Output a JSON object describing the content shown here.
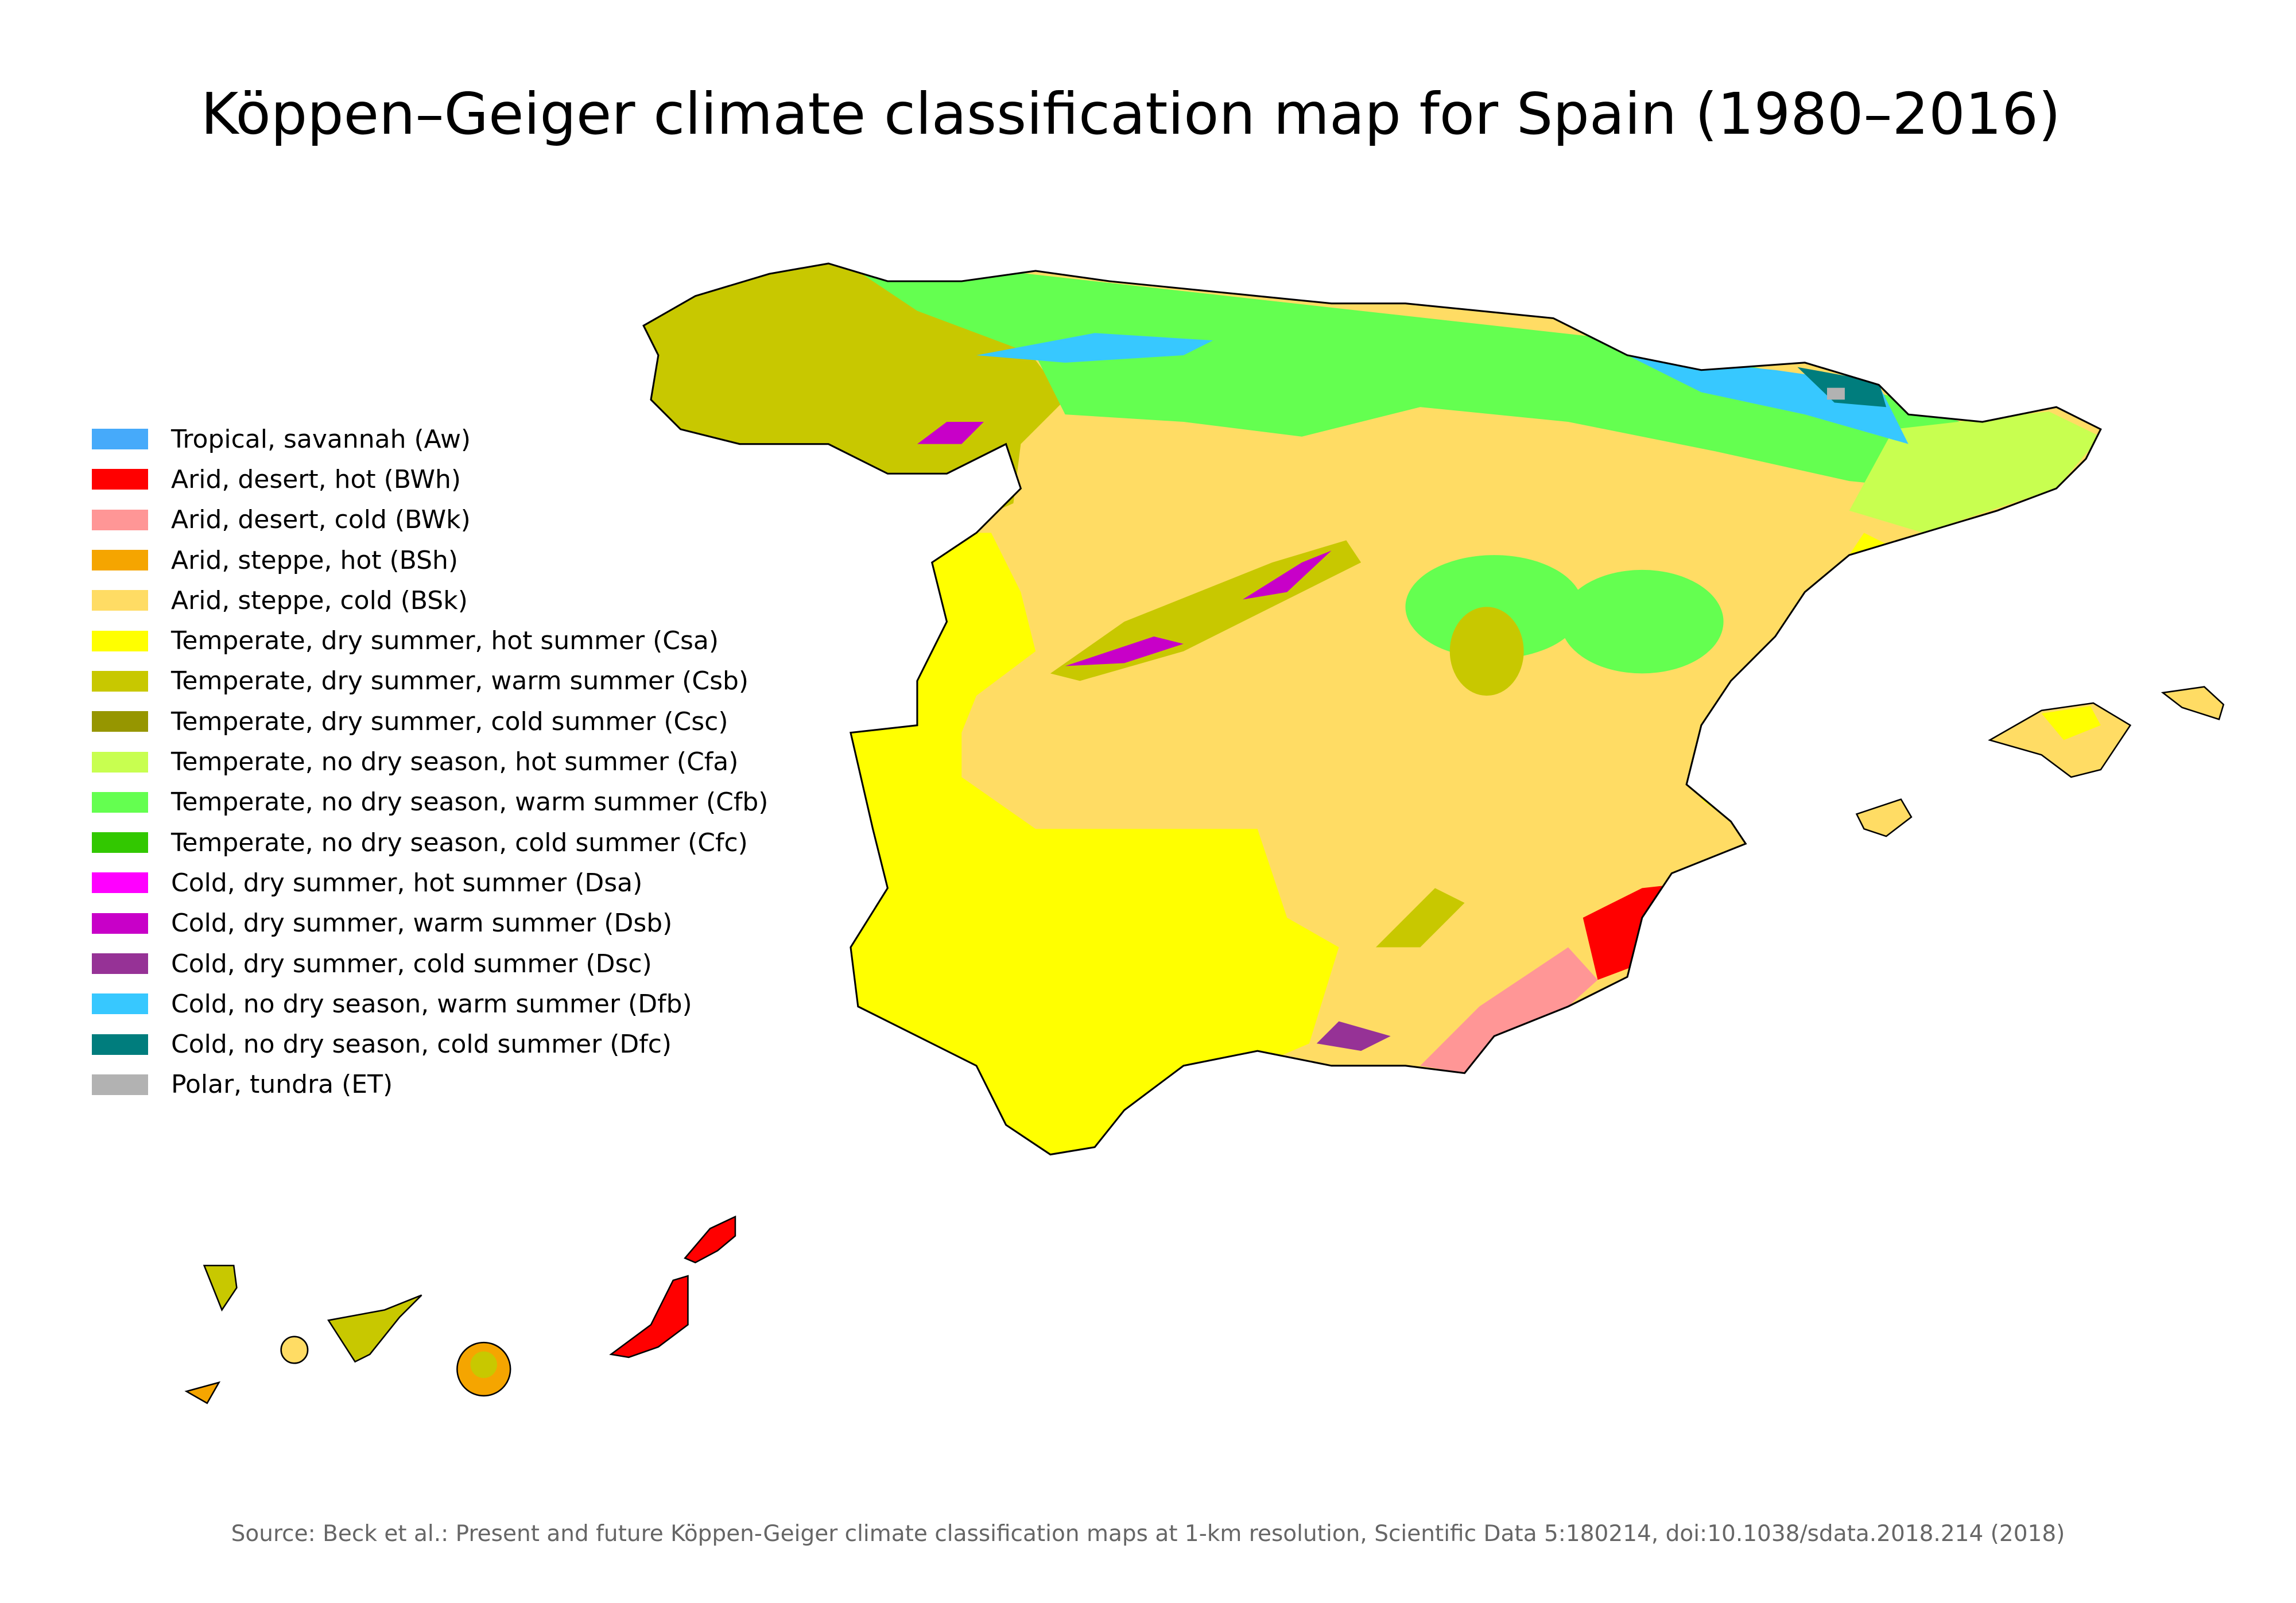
{
  "title": "Köppen–Geiger climate classification map for Spain (1980–2016)",
  "legend": [
    {
      "label": "Tropical, savannah (Aw)",
      "color": "#46AAFA"
    },
    {
      "label": "Arid, desert, hot (BWh)",
      "color": "#FF0000"
    },
    {
      "label": "Arid, desert, cold (BWk)",
      "color": "#FF9696"
    },
    {
      "label": "Arid, steppe, hot (BSh)",
      "color": "#F5A500"
    },
    {
      "label": "Arid, steppe, cold (BSk)",
      "color": "#FFDC64"
    },
    {
      "label": "Temperate, dry summer, hot summer (Csa)",
      "color": "#FFFF00"
    },
    {
      "label": "Temperate, dry summer, warm summer (Csb)",
      "color": "#C8C800"
    },
    {
      "label": "Temperate, dry summer, cold summer (Csc)",
      "color": "#969600"
    },
    {
      "label": "Temperate, no dry season, hot summer (Cfa)",
      "color": "#C8FF50"
    },
    {
      "label": "Temperate, no dry season, warm summer (Cfb)",
      "color": "#64FF50"
    },
    {
      "label": "Temperate, no dry season, cold summer (Cfc)",
      "color": "#32C800"
    },
    {
      "label": "Cold, dry summer, hot summer (Dsa)",
      "color": "#FF00FF"
    },
    {
      "label": "Cold, dry summer, warm summer (Dsb)",
      "color": "#C800C8"
    },
    {
      "label": "Cold, dry summer, cold summer (Dsc)",
      "color": "#963296"
    },
    {
      "label": "Cold, no dry season, warm summer (Dfb)",
      "color": "#37C8FF"
    },
    {
      "label": "Cold, no dry season, cold summer (Dfc)",
      "color": "#007D7D"
    },
    {
      "label": "Polar, tundra (ET)",
      "color": "#B2B2B2"
    }
  ],
  "source": "Source: Beck et al.: Present and future Köppen-Geiger climate classification maps at 1-km resolution, Scientific Data 5:180214, doi:10.1038/sdata.2018.214 (2018)"
}
